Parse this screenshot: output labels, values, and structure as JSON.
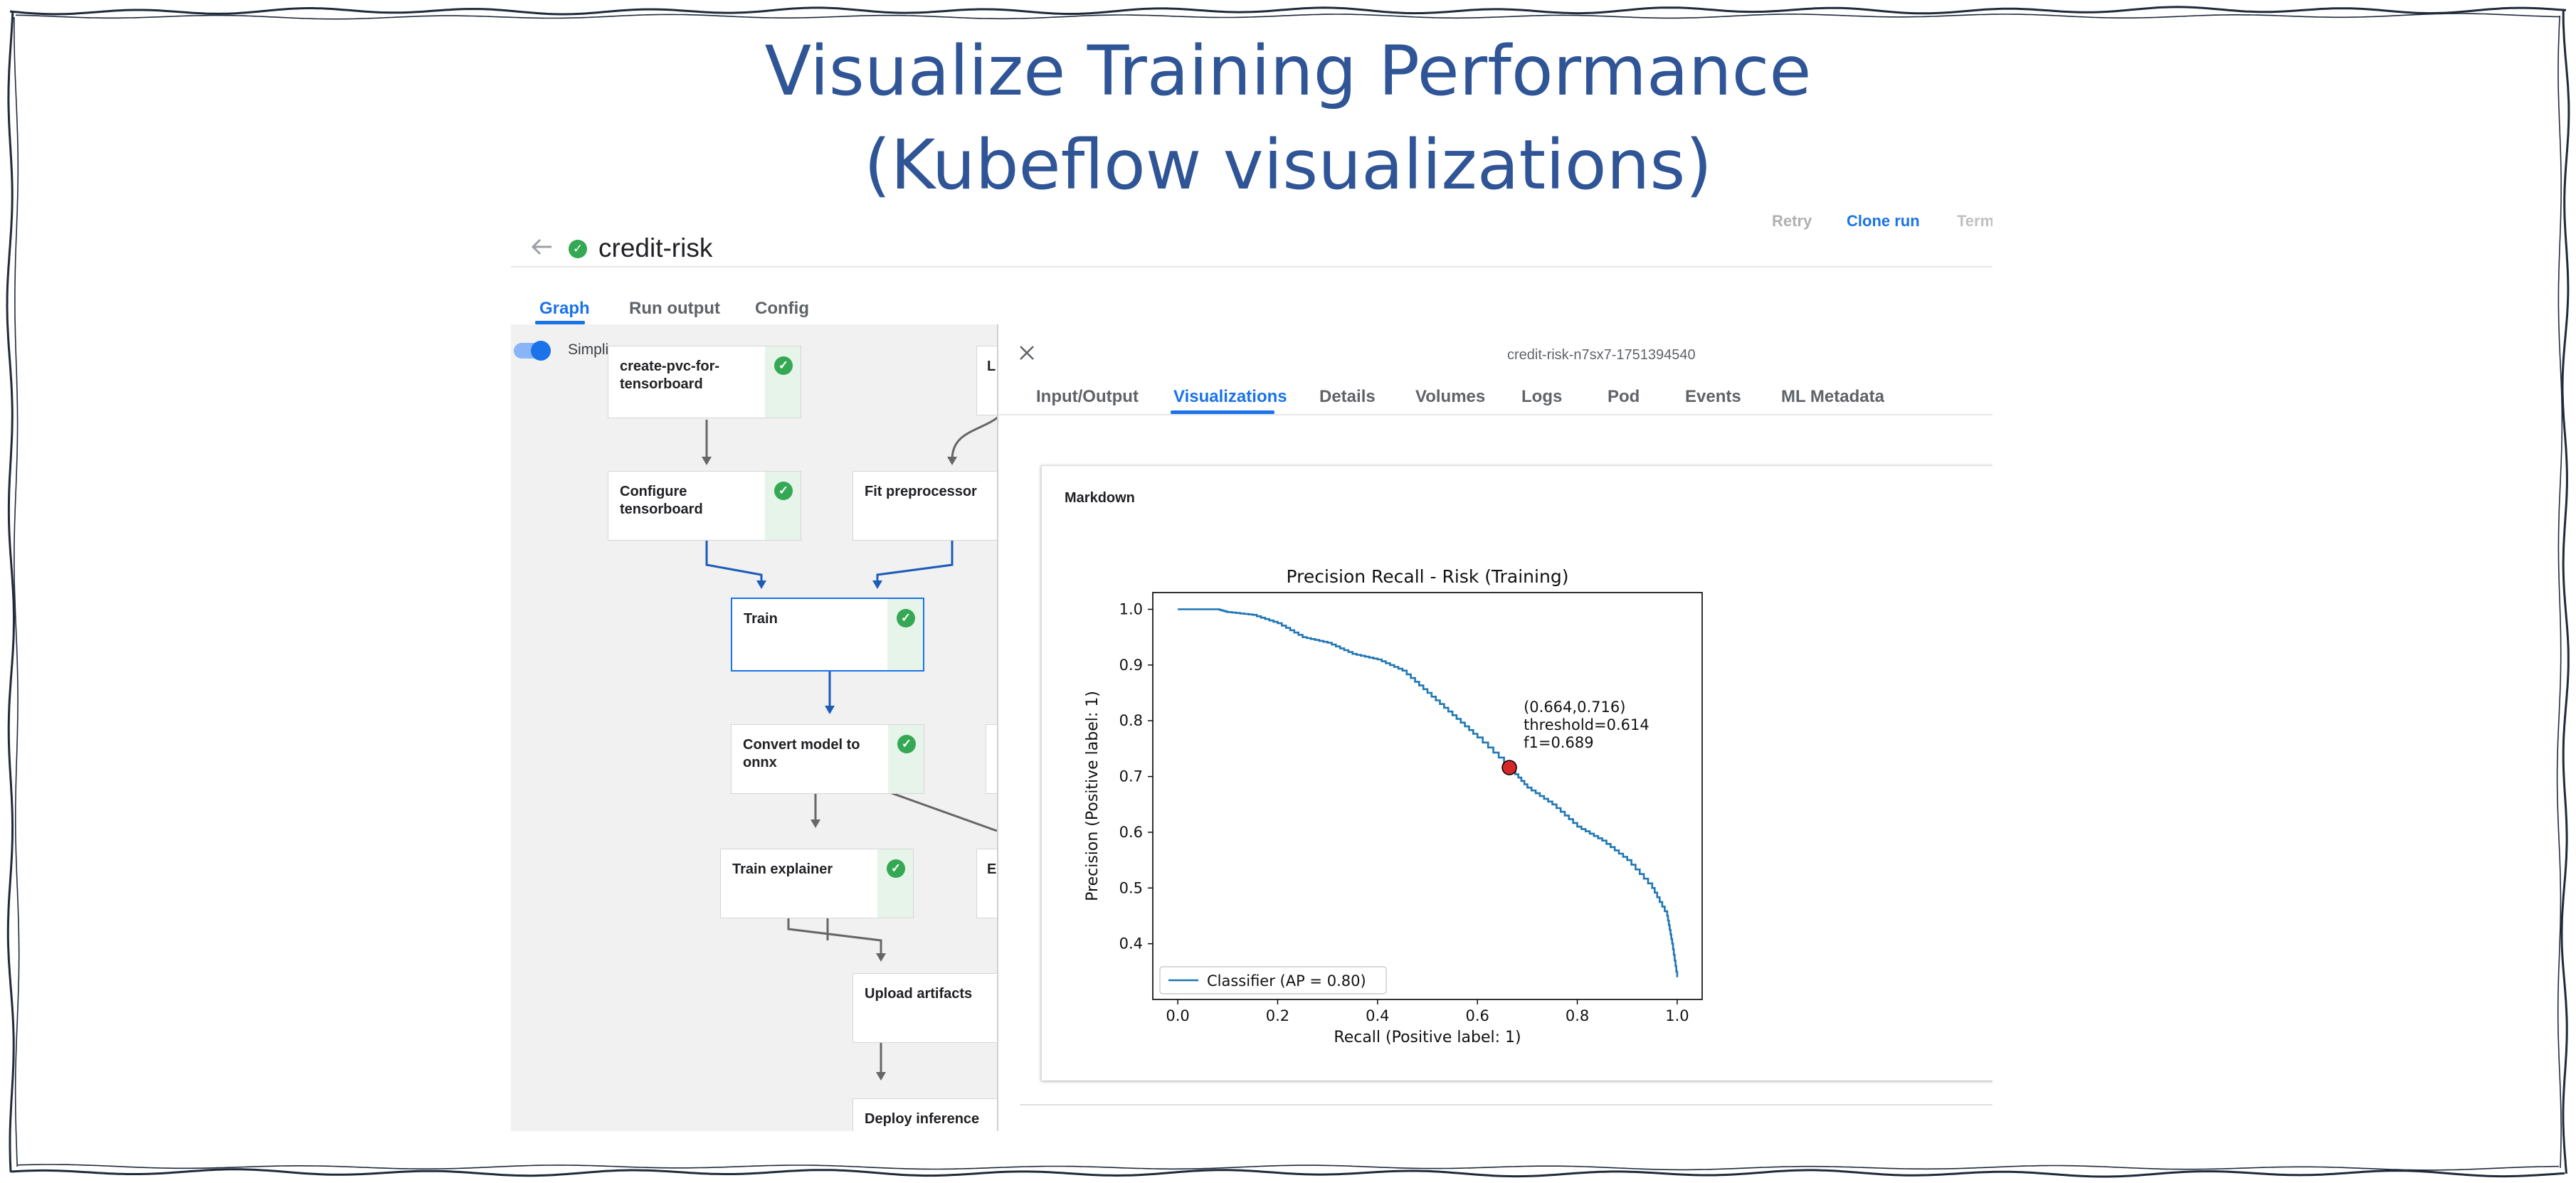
{
  "slide": {
    "title_line1": "Visualize Training Performance",
    "title_line2": "(Kubeflow visualizations)"
  },
  "header": {
    "run_name": "credit-risk",
    "actions": {
      "retry": "Retry",
      "clone_run": "Clone run",
      "terminate": "Term"
    },
    "tabs": [
      "Graph",
      "Run output",
      "Config"
    ],
    "active_tab": "Graph",
    "simplify_label": "Simpli"
  },
  "graph": {
    "nodes": [
      {
        "label": "create-pvc-for-\ntensorboard",
        "status": "succeeded"
      },
      {
        "label": "Configure\ntensorboard",
        "status": "succeeded"
      },
      {
        "label": "Fit preprocessor",
        "status": ""
      },
      {
        "label": "Train",
        "status": "succeeded"
      },
      {
        "label": "Convert model to\nonnx",
        "status": "succeeded"
      },
      {
        "label": "Train explainer",
        "status": "succeeded"
      },
      {
        "label": "Upload artifacts",
        "status": ""
      },
      {
        "label": "Deploy inference",
        "status": ""
      },
      {
        "label": "L",
        "status": ""
      },
      {
        "label": "E",
        "status": ""
      }
    ]
  },
  "panel": {
    "node_id": "credit-risk-n7sx7-1751394540",
    "tabs": [
      "Input/Output",
      "Visualizations",
      "Details",
      "Volumes",
      "Logs",
      "Pod",
      "Events",
      "ML Metadata"
    ],
    "active_tab": "Visualizations",
    "card_title": "Markdown"
  },
  "colors": {
    "accent": "#1a73e8",
    "title": "#2f5597",
    "success": "#34a853",
    "curve": "#1f77b4",
    "marker": "#d62728"
  },
  "chart_data": {
    "type": "line",
    "title": "Precision Recall - Risk (Training)",
    "xlabel": "Recall (Positive label: 1)",
    "ylabel": "Precision (Positive label: 1)",
    "xlim": [
      -0.05,
      1.05
    ],
    "ylim": [
      0.3,
      1.03
    ],
    "xticks": [
      "0.0",
      "0.2",
      "0.4",
      "0.6",
      "0.8",
      "1.0"
    ],
    "yticks": [
      "0.4",
      "0.5",
      "0.6",
      "0.7",
      "0.8",
      "0.9",
      "1.0"
    ],
    "grid": false,
    "legend_position": "lower-left",
    "series": [
      {
        "name": "Classifier (AP = 0.80)",
        "x": [
          0.0,
          0.08,
          0.1,
          0.15,
          0.2,
          0.25,
          0.3,
          0.35,
          0.4,
          0.45,
          0.5,
          0.55,
          0.6,
          0.664,
          0.7,
          0.75,
          0.8,
          0.85,
          0.9,
          0.95,
          0.98,
          0.99,
          1.0
        ],
        "y": [
          1.0,
          1.0,
          0.995,
          0.99,
          0.975,
          0.95,
          0.94,
          0.92,
          0.91,
          0.89,
          0.85,
          0.81,
          0.77,
          0.716,
          0.68,
          0.65,
          0.61,
          0.585,
          0.55,
          0.5,
          0.45,
          0.4,
          0.34
        ]
      }
    ],
    "annotation": {
      "x": 0.664,
      "y": 0.716,
      "lines": [
        "(0.664,0.716)",
        "threshold=0.614",
        "f1=0.689"
      ]
    }
  }
}
